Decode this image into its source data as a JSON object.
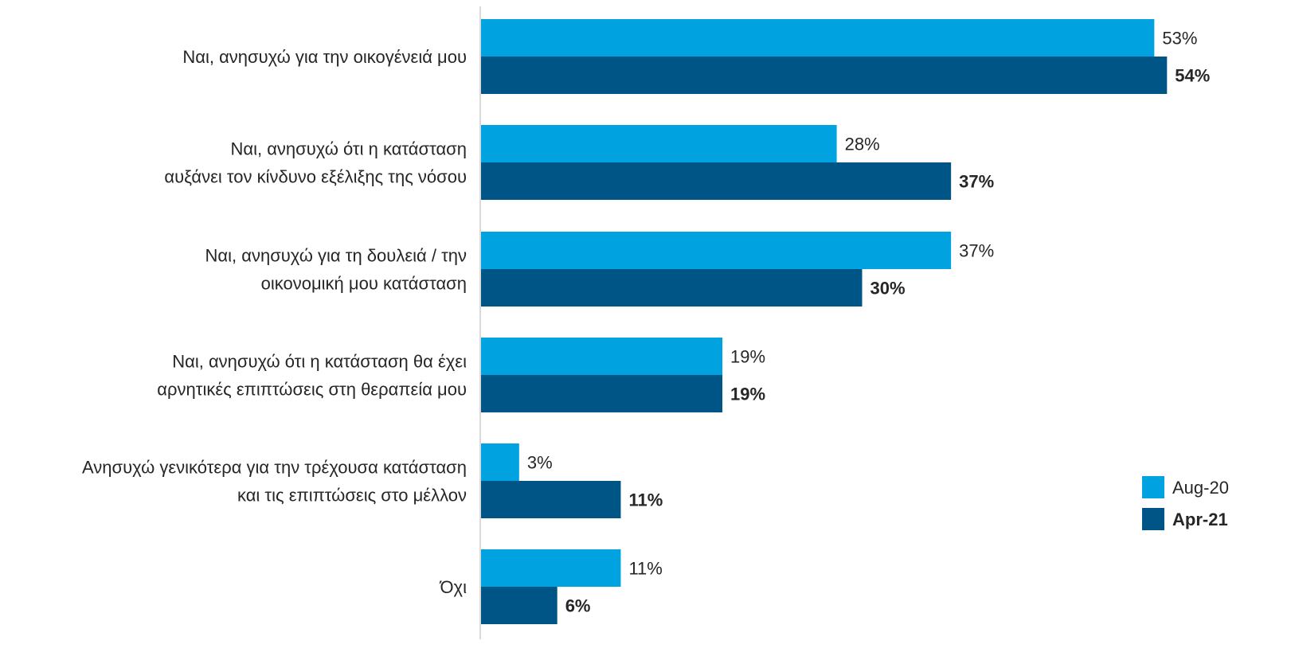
{
  "chart_data": {
    "type": "bar",
    "orientation": "horizontal",
    "categories": [
      [
        "Ναι, ανησυχώ για την οικογένειά μου"
      ],
      [
        "Ναι, ανησυχώ ότι η κατάσταση",
        "αυξάνει τον κίνδυνο εξέλιξης της νόσου"
      ],
      [
        "Ναι, ανησυχώ για τη δουλειά / την",
        "οικονομική μου κατάσταση"
      ],
      [
        "Ναι, ανησυχώ ότι η κατάσταση θα έχει",
        "αρνητικές επιπτώσεις στη θεραπεία μου"
      ],
      [
        "Ανησυχώ γενικότερα για την τρέχουσα κατάσταση",
        "και τις επιπτώσεις στο μέλλον"
      ],
      [
        "Όχι"
      ]
    ],
    "series": [
      {
        "name": "Aug-20",
        "color": "#00a3e0",
        "values": [
          53,
          28,
          37,
          19,
          3,
          11
        ],
        "labels": [
          "53%",
          "28%",
          "37%",
          "19%",
          "3%",
          "11%"
        ],
        "label_weight": "normal"
      },
      {
        "name": "Apr-21",
        "color": "#005587",
        "values": [
          54,
          37,
          30,
          19,
          11,
          6
        ],
        "labels": [
          "54%",
          "37%",
          "30%",
          "19%",
          "11%",
          "6%"
        ],
        "label_weight": "bold"
      }
    ],
    "title": "",
    "xlabel": "",
    "ylabel": "",
    "unit": "%",
    "grid": false,
    "legend_position": "right"
  }
}
